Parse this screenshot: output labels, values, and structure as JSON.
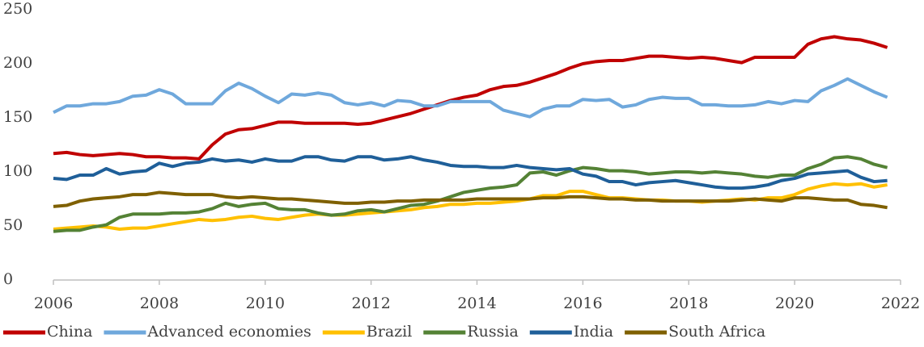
{
  "chart_data": {
    "type": "line",
    "x": [
      2006,
      2006.25,
      2006.5,
      2006.75,
      2007,
      2007.25,
      2007.5,
      2007.75,
      2008,
      2008.25,
      2008.5,
      2008.75,
      2009,
      2009.25,
      2009.5,
      2009.75,
      2010,
      2010.25,
      2010.5,
      2010.75,
      2011,
      2011.25,
      2011.5,
      2011.75,
      2012,
      2012.25,
      2012.5,
      2012.75,
      2013,
      2013.25,
      2013.5,
      2013.75,
      2014,
      2014.25,
      2014.5,
      2014.75,
      2015,
      2015.25,
      2015.5,
      2015.75,
      2016,
      2016.25,
      2016.5,
      2016.75,
      2017,
      2017.25,
      2017.5,
      2017.75,
      2018,
      2018.25,
      2018.5,
      2018.75,
      2019,
      2019.25,
      2019.5,
      2019.75,
      2020,
      2020.25,
      2020.5,
      2020.75,
      2021,
      2021.25,
      2021.5,
      2021.75
    ],
    "series": [
      {
        "name": "China",
        "color": "#c00000",
        "values": [
          117,
          118,
          116,
          115,
          116,
          117,
          116,
          114,
          114,
          113,
          113,
          112,
          125,
          135,
          139,
          140,
          143,
          146,
          146,
          145,
          145,
          145,
          145,
          144,
          145,
          148,
          151,
          154,
          158,
          162,
          166,
          169,
          171,
          176,
          179,
          180,
          183,
          187,
          191,
          196,
          200,
          202,
          203,
          203,
          205,
          207,
          207,
          206,
          205,
          206,
          205,
          203,
          201,
          206,
          206,
          206,
          206,
          218,
          223,
          225,
          223,
          222,
          219,
          215
        ]
      },
      {
        "name": "Advanced economies",
        "color": "#6fa8dc",
        "values": [
          155,
          161,
          161,
          163,
          163,
          165,
          170,
          171,
          176,
          172,
          163,
          163,
          163,
          175,
          182,
          177,
          170,
          164,
          172,
          171,
          173,
          171,
          164,
          162,
          164,
          161,
          166,
          165,
          161,
          161,
          165,
          165,
          165,
          165,
          157,
          154,
          151,
          158,
          161,
          161,
          167,
          166,
          167,
          160,
          162,
          167,
          169,
          168,
          168,
          162,
          162,
          161,
          161,
          162,
          165,
          163,
          166,
          165,
          175,
          180,
          186,
          180,
          174,
          169
        ]
      },
      {
        "name": "Brazil",
        "color": "#ffc000",
        "values": [
          47,
          48,
          49,
          50,
          49,
          47,
          48,
          48,
          50,
          52,
          54,
          56,
          55,
          56,
          58,
          59,
          57,
          56,
          58,
          60,
          61,
          60,
          60,
          61,
          62,
          63,
          64,
          65,
          67,
          68,
          70,
          70,
          71,
          71,
          72,
          73,
          75,
          78,
          78,
          82,
          82,
          79,
          76,
          76,
          75,
          74,
          74,
          73,
          73,
          72,
          73,
          74,
          75,
          74,
          76,
          76,
          79,
          84,
          87,
          89,
          88,
          89,
          86,
          88
        ]
      },
      {
        "name": "Russia",
        "color": "#548235",
        "values": [
          45,
          46,
          46,
          49,
          51,
          58,
          61,
          61,
          61,
          62,
          62,
          63,
          66,
          71,
          68,
          70,
          71,
          66,
          65,
          65,
          62,
          60,
          61,
          64,
          65,
          63,
          66,
          69,
          70,
          73,
          77,
          81,
          83,
          85,
          86,
          88,
          99,
          100,
          97,
          101,
          104,
          103,
          101,
          101,
          100,
          98,
          99,
          100,
          100,
          99,
          100,
          99,
          98,
          96,
          95,
          97,
          97,
          103,
          107,
          113,
          114,
          112,
          107,
          104
        ]
      },
      {
        "name": "India",
        "color": "#1f5f99",
        "values": [
          94,
          93,
          97,
          97,
          103,
          98,
          100,
          101,
          108,
          105,
          108,
          109,
          112,
          110,
          111,
          109,
          112,
          110,
          110,
          114,
          114,
          111,
          110,
          114,
          114,
          111,
          112,
          114,
          111,
          109,
          106,
          105,
          105,
          104,
          104,
          106,
          104,
          103,
          102,
          103,
          98,
          96,
          91,
          91,
          88,
          90,
          91,
          92,
          90,
          88,
          86,
          85,
          85,
          86,
          88,
          92,
          94,
          98,
          99,
          100,
          101,
          95,
          91,
          92
        ]
      },
      {
        "name": "South Africa",
        "color": "#7f6000",
        "values": [
          68,
          69,
          73,
          75,
          76,
          77,
          79,
          79,
          81,
          80,
          79,
          79,
          79,
          77,
          76,
          77,
          76,
          75,
          75,
          74,
          73,
          72,
          71,
          71,
          72,
          72,
          73,
          73,
          74,
          74,
          74,
          74,
          75,
          75,
          75,
          75,
          75,
          76,
          76,
          77,
          77,
          76,
          75,
          75,
          74,
          74,
          73,
          73,
          73,
          73,
          73,
          73,
          74,
          75,
          74,
          73,
          76,
          76,
          75,
          74,
          74,
          70,
          69,
          67
        ]
      }
    ],
    "xlim": [
      2006,
      2022
    ],
    "xticks": [
      2006,
      2008,
      2010,
      2012,
      2014,
      2016,
      2018,
      2020,
      2022
    ],
    "ylim": [
      0,
      250
    ],
    "yticks": [
      0,
      50,
      100,
      150,
      200,
      250
    ],
    "legend": "bottom"
  }
}
